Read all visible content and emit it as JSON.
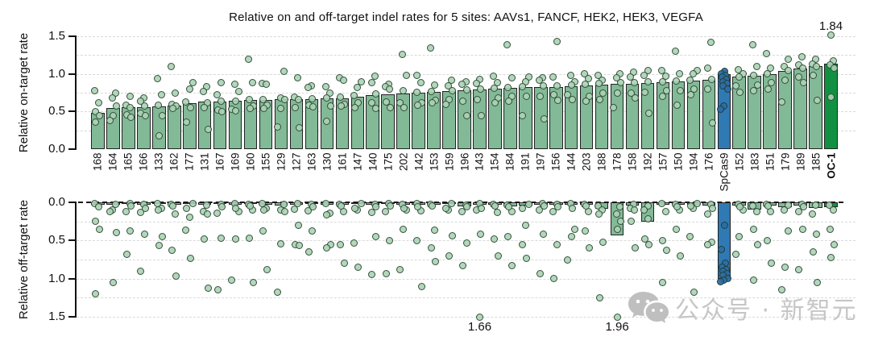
{
  "watermark": {
    "icon": "wechat-icon",
    "text": "公众号 · 新智元",
    "color": "#c6c6c6"
  },
  "chart_data": {
    "type": "bar",
    "title": "Relative on and off-target indel rates for 5 sites: AAVs1, FANCF, HEK2, HEK3, VEGFA",
    "panels": [
      {
        "id": "on",
        "ylabel": "Relative on-target rate",
        "direction": "up",
        "ylim": [
          0,
          1.5
        ]
      },
      {
        "id": "off",
        "ylabel": "Relative off-target rate",
        "direction": "down",
        "ylim": [
          0,
          1.5
        ]
      }
    ],
    "ytick_labels": [
      "0.0",
      "0.5",
      "1.0",
      "1.5"
    ],
    "yticks": [
      0,
      0.5,
      1.0,
      1.5
    ],
    "grid_step": 0.25,
    "colors": {
      "bar_fill": "#82b996",
      "bar_border": "#222222",
      "point_fill": "rgba(171,211,180,0.9)",
      "point_border": "rgba(30,56,40,0.85)",
      "spcas9_fill": "#2f79b5",
      "spcas9_point_fill": "rgba(45,109,163,0.95)",
      "oc1_fill": "#129042",
      "grid": "#d9d9d9",
      "watermark": "#c6c6c6"
    },
    "highlights": {
      "SpCas9": "spcas9_fill",
      "OC-1": "oc1_fill"
    },
    "annotations": [
      {
        "text": "1.84",
        "panel": "on",
        "category": "OC-1"
      },
      {
        "text": "1.66",
        "panel": "off",
        "category": "143"
      },
      {
        "text": "1.96",
        "panel": "off",
        "category": "178"
      }
    ],
    "bars": [
      {
        "label": "168",
        "on": 0.48,
        "off": 0.03,
        "on_pts": [
          0.78,
          0.62,
          0.5,
          0.45,
          0.36
        ],
        "off_pts": [
          0.02,
          0.06,
          0.25,
          0.35,
          1.2
        ]
      },
      {
        "label": "164",
        "on": 0.55,
        "off": 0.03,
        "on_pts": [
          0.75,
          0.68,
          0.57,
          0.44,
          0.38
        ],
        "off_pts": [
          0.03,
          0.1,
          0.4,
          1.05,
          0.12
        ]
      },
      {
        "label": "165",
        "on": 0.56,
        "off": 0.02,
        "on_pts": [
          0.7,
          0.58,
          0.55,
          0.46,
          0.42
        ],
        "off_pts": [
          0.02,
          0.12,
          0.38,
          0.68,
          0.05
        ]
      },
      {
        "label": "166",
        "on": 0.56,
        "off": 0.03,
        "on_pts": [
          0.68,
          0.64,
          0.57,
          0.48,
          0.44
        ],
        "off_pts": [
          0.03,
          0.13,
          0.42,
          0.9,
          0.08
        ]
      },
      {
        "label": "133",
        "on": 0.57,
        "off": 0.02,
        "on_pts": [
          0.94,
          0.72,
          0.58,
          0.44,
          0.18
        ],
        "off_pts": [
          0.02,
          0.08,
          0.1,
          0.45,
          0.56
        ]
      },
      {
        "label": "162",
        "on": 0.58,
        "off": 0.03,
        "on_pts": [
          1.1,
          0.74,
          0.6,
          0.57,
          0.54
        ],
        "off_pts": [
          0.03,
          0.15,
          0.63,
          0.97,
          0.05
        ]
      },
      {
        "label": "177",
        "on": 0.61,
        "off": 0.02,
        "on_pts": [
          0.88,
          0.8,
          0.63,
          0.55,
          0.36
        ],
        "off_pts": [
          0.02,
          0.2,
          0.36,
          0.73,
          0.08
        ]
      },
      {
        "label": "131",
        "on": 0.63,
        "off": 0.03,
        "on_pts": [
          0.83,
          0.77,
          0.62,
          0.55,
          0.26
        ],
        "off_pts": [
          0.04,
          0.12,
          0.15,
          0.48,
          1.12
        ]
      },
      {
        "label": "167",
        "on": 0.63,
        "off": 0.02,
        "on_pts": [
          0.88,
          0.72,
          0.64,
          0.52,
          0.5
        ],
        "off_pts": [
          0.03,
          0.14,
          0.47,
          1.15,
          0.06
        ]
      },
      {
        "label": "169",
        "on": 0.64,
        "off": 0.03,
        "on_pts": [
          0.86,
          0.77,
          0.64,
          0.53,
          0.51
        ],
        "off_pts": [
          0.02,
          0.12,
          0.48,
          1.02,
          0.08
        ]
      },
      {
        "label": "160",
        "on": 0.65,
        "off": 0.02,
        "on_pts": [
          1.2,
          0.88,
          0.66,
          0.57,
          0.54
        ],
        "off_pts": [
          0.03,
          0.1,
          0.47,
          1.05,
          0.05
        ]
      },
      {
        "label": "155",
        "on": 0.65,
        "off": 0.03,
        "on_pts": [
          0.87,
          0.86,
          0.66,
          0.58,
          0.54
        ],
        "off_pts": [
          0.02,
          0.08,
          0.38,
          0.88,
          0.1
        ]
      },
      {
        "label": "129",
        "on": 0.66,
        "off": 0.04,
        "on_pts": [
          1.03,
          0.68,
          0.66,
          0.54,
          0.29
        ],
        "off_pts": [
          0.03,
          0.1,
          0.12,
          0.54,
          1.18
        ]
      },
      {
        "label": "127",
        "on": 0.66,
        "off": 0.03,
        "on_pts": [
          0.95,
          0.69,
          0.66,
          0.55,
          0.28
        ],
        "off_pts": [
          0.02,
          0.09,
          0.3,
          0.55,
          0.56
        ]
      },
      {
        "label": "163",
        "on": 0.66,
        "off": 0.02,
        "on_pts": [
          0.84,
          0.82,
          0.67,
          0.58,
          0.56
        ],
        "off_pts": [
          0.03,
          0.11,
          0.38,
          0.65,
          0.06
        ]
      },
      {
        "label": "130",
        "on": 0.67,
        "off": 0.03,
        "on_pts": [
          0.83,
          0.75,
          0.68,
          0.57,
          0.37
        ],
        "off_pts": [
          0.02,
          0.14,
          0.16,
          0.55,
          0.6
        ]
      },
      {
        "label": "161",
        "on": 0.68,
        "off": 0.03,
        "on_pts": [
          0.95,
          0.92,
          0.69,
          0.6,
          0.57
        ],
        "off_pts": [
          0.03,
          0.12,
          0.55,
          0.8,
          0.05
        ]
      },
      {
        "label": "147",
        "on": 0.7,
        "off": 0.02,
        "on_pts": [
          0.9,
          0.82,
          0.71,
          0.62,
          0.55
        ],
        "off_pts": [
          0.02,
          0.1,
          0.53,
          0.85,
          0.08
        ]
      },
      {
        "label": "140",
        "on": 0.72,
        "off": 0.03,
        "on_pts": [
          0.97,
          0.88,
          0.73,
          0.62,
          0.54
        ],
        "off_pts": [
          0.03,
          0.13,
          0.45,
          0.95,
          0.06
        ]
      },
      {
        "label": "175",
        "on": 0.73,
        "off": 0.02,
        "on_pts": [
          0.86,
          0.83,
          0.8,
          0.63,
          0.55
        ],
        "off_pts": [
          0.02,
          0.12,
          0.5,
          0.93,
          0.05
        ]
      },
      {
        "label": "202",
        "on": 0.74,
        "off": 0.03,
        "on_pts": [
          1.26,
          0.98,
          0.78,
          0.62,
          0.55
        ],
        "off_pts": [
          0.03,
          0.1,
          0.35,
          0.88,
          0.08
        ]
      },
      {
        "label": "142",
        "on": 0.75,
        "off": 0.03,
        "on_pts": [
          0.98,
          0.88,
          0.76,
          0.62,
          0.58
        ],
        "off_pts": [
          0.02,
          0.11,
          0.5,
          1.1,
          0.06
        ]
      },
      {
        "label": "153",
        "on": 0.76,
        "off": 0.03,
        "on_pts": [
          1.34,
          0.85,
          0.77,
          0.65,
          0.62
        ],
        "off_pts": [
          0.03,
          0.36,
          0.6,
          0.78,
          0.05
        ]
      },
      {
        "label": "159",
        "on": 0.77,
        "off": 0.02,
        "on_pts": [
          0.92,
          0.84,
          0.78,
          0.66,
          0.6
        ],
        "off_pts": [
          0.02,
          0.1,
          0.44,
          0.7,
          0.08
        ]
      },
      {
        "label": "196",
        "on": 0.78,
        "off": 0.05,
        "on_pts": [
          0.9,
          0.86,
          0.79,
          0.64,
          0.45
        ],
        "off_pts": [
          0.04,
          0.12,
          0.53,
          0.83,
          0.06
        ]
      },
      {
        "label": "143",
        "on": 0.79,
        "off": 0.03,
        "on_pts": [
          0.93,
          0.87,
          0.8,
          0.66,
          0.44
        ],
        "off_pts": [
          0.02,
          0.1,
          0.42,
          1.66,
          0.08
        ]
      },
      {
        "label": "154",
        "on": 0.8,
        "off": 0.03,
        "on_pts": [
          0.97,
          0.88,
          0.81,
          0.68,
          0.62
        ],
        "off_pts": [
          0.03,
          0.13,
          0.48,
          0.7,
          0.05
        ]
      },
      {
        "label": "184",
        "on": 0.81,
        "off": 0.05,
        "on_pts": [
          1.39,
          0.95,
          0.82,
          0.7,
          0.64
        ],
        "off_pts": [
          0.04,
          0.12,
          0.45,
          0.83,
          0.06
        ]
      },
      {
        "label": "191",
        "on": 0.82,
        "off": 0.04,
        "on_pts": [
          0.96,
          0.9,
          0.83,
          0.7,
          0.45
        ],
        "off_pts": [
          0.03,
          0.3,
          0.55,
          0.73,
          0.08
        ]
      },
      {
        "label": "197",
        "on": 0.82,
        "off": 0.03,
        "on_pts": [
          0.95,
          0.92,
          0.84,
          0.7,
          0.4
        ],
        "off_pts": [
          0.02,
          0.1,
          0.42,
          0.93,
          0.05
        ]
      },
      {
        "label": "156",
        "on": 0.83,
        "off": 0.03,
        "on_pts": [
          1.43,
          0.96,
          0.84,
          0.72,
          0.65
        ],
        "off_pts": [
          0.03,
          0.12,
          0.55,
          1.0,
          0.06
        ]
      },
      {
        "label": "144",
        "on": 0.84,
        "off": 0.03,
        "on_pts": [
          0.98,
          0.9,
          0.85,
          0.72,
          0.66
        ],
        "off_pts": [
          0.02,
          0.35,
          0.45,
          0.75,
          0.08
        ]
      },
      {
        "label": "203",
        "on": 0.85,
        "off": 0.03,
        "on_pts": [
          1.0,
          0.94,
          0.86,
          0.7,
          0.64
        ],
        "off_pts": [
          0.03,
          0.12,
          0.38,
          0.6,
          0.05
        ]
      },
      {
        "label": "188",
        "on": 0.86,
        "off": 0.08,
        "on_pts": [
          0.98,
          0.92,
          0.87,
          0.74,
          0.66
        ],
        "off_pts": [
          0.05,
          0.1,
          0.15,
          0.52,
          1.25
        ]
      },
      {
        "label": "178",
        "on": 0.87,
        "off": 0.43,
        "on_pts": [
          1.0,
          0.95,
          0.88,
          0.74,
          0.55
        ],
        "off_pts": [
          0.06,
          0.15,
          0.25,
          0.35,
          1.96
        ]
      },
      {
        "label": "158",
        "on": 0.87,
        "off": 0.04,
        "on_pts": [
          1.02,
          0.96,
          0.88,
          0.75,
          0.68
        ],
        "off_pts": [
          0.03,
          0.08,
          0.1,
          0.25,
          0.6
        ]
      },
      {
        "label": "192",
        "on": 0.88,
        "off": 0.25,
        "on_pts": [
          1.05,
          0.98,
          0.89,
          0.76,
          0.48
        ],
        "off_pts": [
          0.05,
          0.1,
          0.22,
          0.48,
          0.55
        ]
      },
      {
        "label": "157",
        "on": 0.89,
        "off": 0.03,
        "on_pts": [
          1.04,
          0.97,
          0.9,
          0.78,
          0.7
        ],
        "off_pts": [
          0.02,
          0.12,
          0.5,
          0.63,
          1.05
        ]
      },
      {
        "label": "150",
        "on": 0.9,
        "off": 0.03,
        "on_pts": [
          1.3,
          1.0,
          0.91,
          0.78,
          0.58
        ],
        "off_pts": [
          0.03,
          0.1,
          0.35,
          0.7,
          0.06
        ]
      },
      {
        "label": "194",
        "on": 0.91,
        "off": 0.03,
        "on_pts": [
          1.05,
          1.0,
          0.92,
          0.8,
          0.72
        ],
        "off_pts": [
          0.02,
          0.08,
          0.45,
          1.18,
          0.05
        ]
      },
      {
        "label": "176",
        "on": 0.92,
        "off": 0.04,
        "on_pts": [
          1.42,
          1.08,
          0.93,
          0.8,
          0.35
        ],
        "off_pts": [
          0.03,
          0.15,
          0.52,
          0.55,
          0.08
        ]
      },
      {
        "label": "SpCas9",
        "on": 1.0,
        "off": 1.0,
        "on_pts": [
          1.03,
          1.0,
          0.98,
          0.96,
          0.93,
          0.9,
          0.87,
          0.84,
          0.8,
          0.57,
          0.53
        ],
        "off_pts": [
          0.3,
          0.62,
          0.8,
          0.85,
          0.88,
          0.9,
          0.93,
          0.96,
          1.0,
          1.02,
          1.04
        ]
      },
      {
        "label": "152",
        "on": 0.96,
        "off": 0.04,
        "on_pts": [
          1.06,
          1.0,
          0.96,
          0.84,
          0.76
        ],
        "off_pts": [
          0.03,
          0.1,
          0.45,
          0.68,
          0.06
        ]
      },
      {
        "label": "183",
        "on": 0.97,
        "off": 0.09,
        "on_pts": [
          1.39,
          1.1,
          0.98,
          0.85,
          0.78
        ],
        "off_pts": [
          0.05,
          0.12,
          0.35,
          0.55,
          1.02
        ]
      },
      {
        "label": "151",
        "on": 1.0,
        "off": 0.04,
        "on_pts": [
          1.27,
          1.08,
          1.0,
          0.88,
          0.8
        ],
        "off_pts": [
          0.03,
          0.12,
          0.5,
          0.8,
          0.05
        ]
      },
      {
        "label": "179",
        "on": 1.04,
        "off": 0.06,
        "on_pts": [
          1.19,
          1.1,
          1.04,
          0.92,
          0.63
        ],
        "off_pts": [
          0.04,
          0.1,
          0.38,
          0.85,
          1.15
        ]
      },
      {
        "label": "189",
        "on": 1.07,
        "off": 0.04,
        "on_pts": [
          1.23,
          1.12,
          1.08,
          0.96,
          0.88
        ],
        "off_pts": [
          0.03,
          0.12,
          0.35,
          0.88,
          0.06
        ]
      },
      {
        "label": "185",
        "on": 1.1,
        "off": 0.07,
        "on_pts": [
          1.19,
          1.13,
          1.1,
          0.98,
          0.65
        ],
        "off_pts": [
          0.04,
          0.15,
          0.42,
          0.65,
          1.05
        ]
      },
      {
        "label": "OC-1",
        "on": 1.14,
        "off": 0.06,
        "on_pts": [
          1.84,
          1.17,
          1.12,
          1.08,
          0.69
        ],
        "off_pts": [
          0.04,
          0.1,
          0.35,
          0.55,
          0.72
        ]
      }
    ]
  }
}
